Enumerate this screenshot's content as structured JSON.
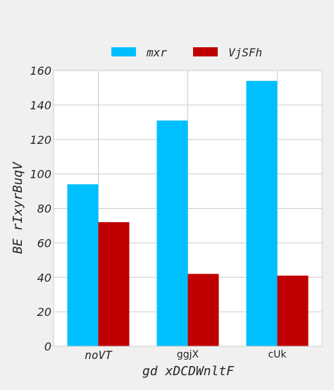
{
  "chart_data": {
    "type": "bar",
    "categories": [
      "noVT",
      "ggjX",
      "cUk"
    ],
    "series": [
      {
        "name": "mxr",
        "values": [
          94,
          131,
          154
        ],
        "color": "#00bfff"
      },
      {
        "name": "VjSFh",
        "values": [
          72,
          42,
          41
        ],
        "color": "#c00000"
      }
    ],
    "xlabel": "gd xDCDWnltF",
    "ylabel": "BE rIxyrBuqV",
    "ylim": [
      0,
      160
    ],
    "yticks": [
      "0",
      "20",
      "40",
      "60",
      "80",
      "100",
      "120",
      "140",
      "160"
    ],
    "grid": true,
    "legend": "top"
  }
}
